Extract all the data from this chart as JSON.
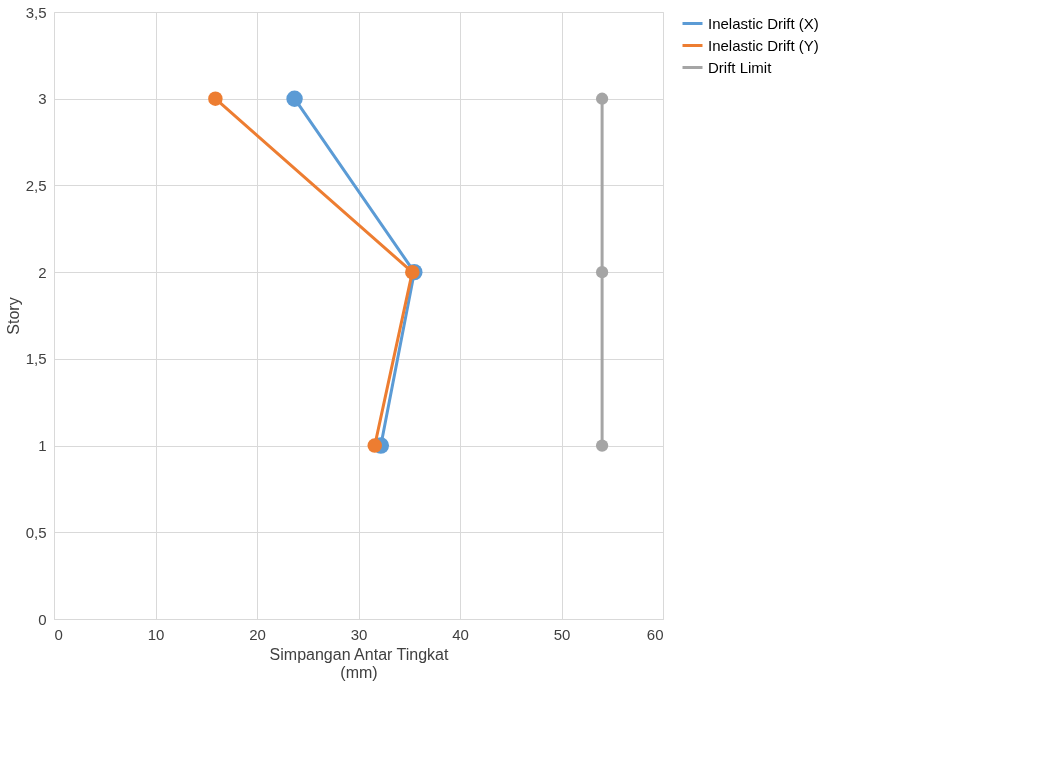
{
  "chart_data": {
    "type": "line",
    "xlabel": "Simpangan Antar Tingkat\n(mm)",
    "ylabel": "Story",
    "series": [
      {
        "name": "Inelastic Drift (X)",
        "color": "#5b9bd5",
        "x": [
          23.7,
          35.5,
          32.2
        ],
        "values": [
          3,
          2,
          1
        ]
      },
      {
        "name": "Inelastic Drift (Y)",
        "color": "#ed7d31",
        "x": [
          15.9,
          35.3,
          31.6
        ],
        "values": [
          3,
          2,
          1
        ]
      },
      {
        "name": "Drift Limit",
        "color": "#a5a5a5",
        "x": [
          54.0,
          54.0,
          54.0
        ],
        "values": [
          3,
          2,
          1
        ]
      }
    ],
    "xlim": [
      0,
      60
    ],
    "xticks": [
      0,
      10,
      20,
      30,
      40,
      50,
      60
    ],
    "ylim": [
      0,
      3.5
    ],
    "yticks": [
      0,
      {
        "value": 0.5,
        "label": "0,5"
      },
      1,
      {
        "value": 1.5,
        "label": "1,5"
      },
      2,
      {
        "value": 2.5,
        "label": "2,5"
      },
      3,
      {
        "value": 3.5,
        "label": "3,5"
      }
    ],
    "grid": true,
    "legend": "right",
    "marker": "circle",
    "line_style": "solid"
  }
}
